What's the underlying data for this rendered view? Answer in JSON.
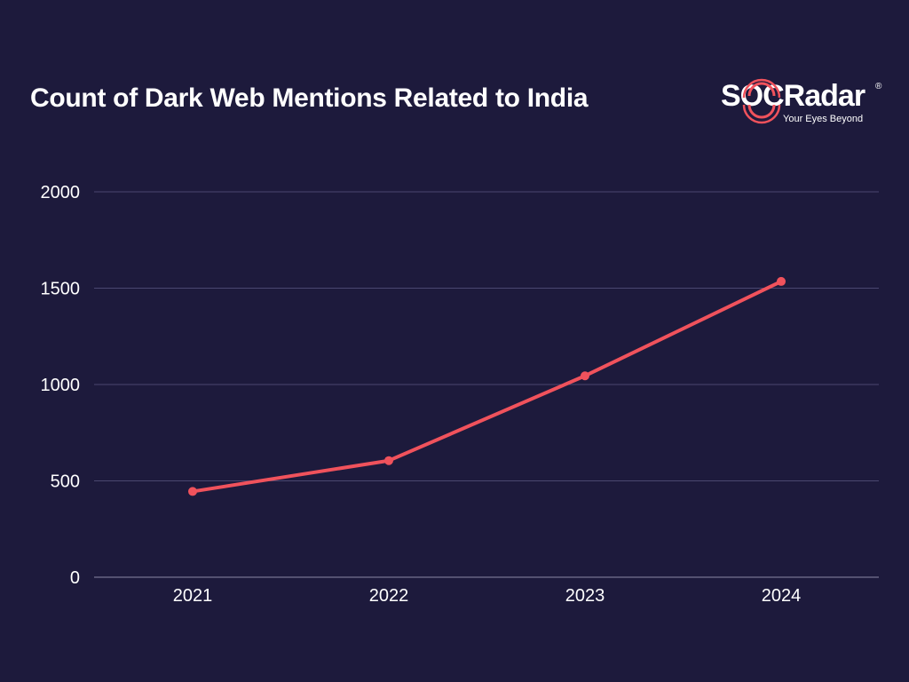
{
  "header": {
    "title": "Count of Dark Web Mentions Related to India"
  },
  "logo": {
    "wordmark": "SOCRadar",
    "registered": "®",
    "tagline": "Your Eyes Beyond"
  },
  "colors": {
    "background": "#1d1a3c",
    "line": "#f0525c",
    "grid": "#4a4770",
    "text": "#ffffff"
  },
  "chart_data": {
    "type": "line",
    "title": "Count of Dark Web Mentions Related to India",
    "xlabel": "",
    "ylabel": "",
    "categories": [
      "2021",
      "2022",
      "2023",
      "2024"
    ],
    "series": [
      {
        "values": [
          445,
          605,
          1045,
          1535
        ]
      }
    ],
    "ylim": [
      0,
      2000
    ],
    "yticks": [
      0,
      500,
      1000,
      1500,
      2000
    ],
    "grid": true,
    "legend": "none"
  }
}
